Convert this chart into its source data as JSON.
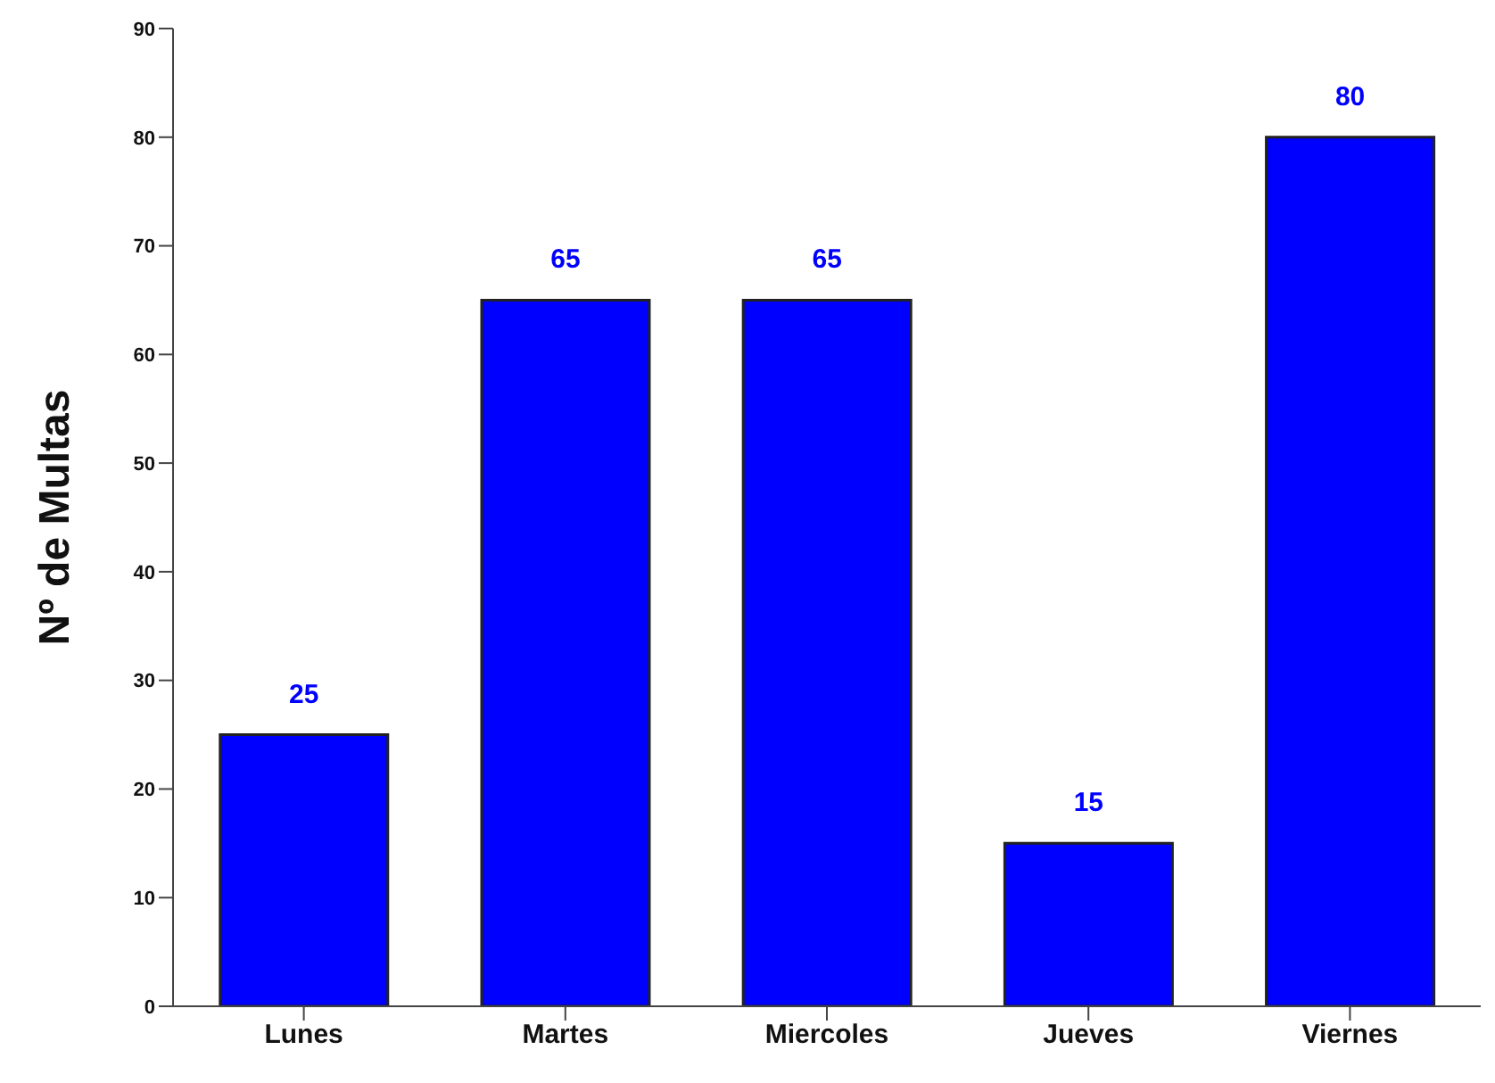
{
  "chart_data": {
    "type": "bar",
    "ylabel": "Nº de Multas",
    "categories": [
      "Lunes",
      "Martes",
      "Miercoles",
      "Jueves",
      "Viernes"
    ],
    "values": [
      25,
      65,
      65,
      15,
      80
    ],
    "color": "#0000ff",
    "ylim": [
      0,
      90
    ],
    "yticks": [
      0,
      10,
      20,
      30,
      40,
      50,
      60,
      70,
      80,
      90
    ],
    "data_labels": true,
    "grid": false,
    "legend": false
  }
}
